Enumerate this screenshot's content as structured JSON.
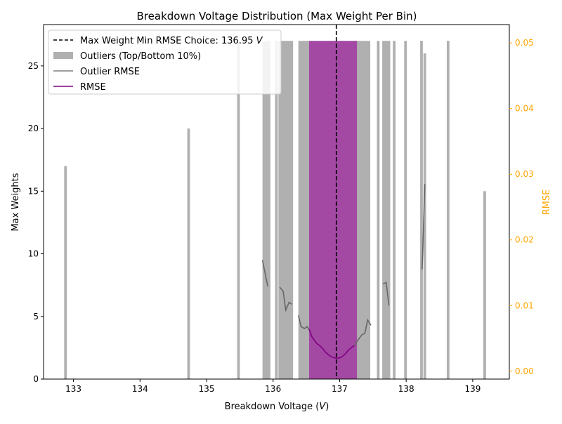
{
  "chart_data": {
    "type": "bar",
    "title": "Breakdown Voltage Distribution (Max Weight Per Bin)",
    "xlabel": "Breakdown Voltage (V)",
    "xlabel_parts": {
      "prefix": "Breakdown Voltage (",
      "unit": "V",
      "suffix": ")"
    },
    "ylabel": "Max Weights",
    "y2label": "RMSE",
    "xlim": [
      132.55,
      139.55
    ],
    "ylim": [
      0,
      28.3
    ],
    "y2lim": [
      -0.0012,
      0.0528
    ],
    "xticks": [
      "133",
      "134",
      "135",
      "136",
      "137",
      "138",
      "139"
    ],
    "yticks": [
      "0",
      "5",
      "10",
      "15",
      "20",
      "25"
    ],
    "y2ticks": [
      "0.00",
      "0.01",
      "0.02",
      "0.03",
      "0.04",
      "0.05"
    ],
    "grid": false,
    "legend_position": "top-left",
    "legend": [
      {
        "label": "Max Weight Min RMSE Choice: 136.95 ",
        "unit": "V",
        "kind": "vline"
      },
      {
        "label": "Outliers (Top/Bottom 10%)",
        "kind": "patch"
      },
      {
        "label": "Outlier RMSE",
        "kind": "line"
      },
      {
        "label": "RMSE",
        "kind": "line"
      }
    ],
    "colors": {
      "outlier_bar": "#b0b0b0",
      "main_bar": "#a349a4",
      "outlier_rmse": "#7f7f7f",
      "rmse": "#800080",
      "y2_axis": "#ffa500",
      "vline": "#000000"
    },
    "vline_x": 136.95,
    "outlier_bars": [
      {
        "x": 132.88,
        "w": 0.04,
        "y": 17
      },
      {
        "x": 134.73,
        "w": 0.04,
        "y": 20
      },
      {
        "x": 135.48,
        "w": 0.04,
        "y": 27
      },
      {
        "x": 135.9,
        "w": 0.12,
        "y": 27
      },
      {
        "x": 136.05,
        "w": 0.04,
        "y": 27
      },
      {
        "x": 136.19,
        "w": 0.22,
        "y": 27
      },
      {
        "x": 136.46,
        "w": 0.16,
        "y": 27
      },
      {
        "x": 137.35,
        "w": 0.22,
        "y": 27
      },
      {
        "x": 137.58,
        "w": 0.04,
        "y": 27
      },
      {
        "x": 137.7,
        "w": 0.12,
        "y": 27
      },
      {
        "x": 137.82,
        "w": 0.04,
        "y": 27
      },
      {
        "x": 137.99,
        "w": 0.04,
        "y": 27
      },
      {
        "x": 138.23,
        "w": 0.04,
        "y": 27
      },
      {
        "x": 138.28,
        "w": 0.04,
        "y": 26
      },
      {
        "x": 138.63,
        "w": 0.04,
        "y": 27
      },
      {
        "x": 139.18,
        "w": 0.04,
        "y": 15
      }
    ],
    "main_bars": [
      {
        "x": 136.9,
        "w": 0.72,
        "y": 27
      }
    ],
    "outlier_rmse": [
      [
        [
          135.84,
          0.0169
        ],
        [
          135.92,
          0.0129
        ]
      ],
      [
        [
          136.1,
          0.0128
        ],
        [
          136.15,
          0.0122
        ],
        [
          136.19,
          0.0093
        ],
        [
          136.24,
          0.0105
        ],
        [
          136.28,
          0.0102
        ]
      ],
      [
        [
          136.38,
          0.0085
        ],
        [
          136.42,
          0.0068
        ],
        [
          136.47,
          0.0065
        ],
        [
          136.51,
          0.0068
        ],
        [
          136.54,
          0.0064
        ]
      ],
      [
        [
          137.22,
          0.0039
        ],
        [
          137.28,
          0.0048
        ],
        [
          137.33,
          0.0055
        ],
        [
          137.38,
          0.0058
        ],
        [
          137.42,
          0.0078
        ],
        [
          137.47,
          0.007
        ]
      ],
      [
        [
          137.65,
          0.0133
        ],
        [
          137.7,
          0.0135
        ],
        [
          137.74,
          0.01
        ]
      ],
      [
        [
          138.24,
          0.0155
        ],
        [
          138.28,
          0.0285
        ]
      ]
    ],
    "rmse": [
      [
        136.54,
        0.0064
      ],
      [
        136.58,
        0.0053
      ],
      [
        136.62,
        0.0047
      ],
      [
        136.66,
        0.0042
      ],
      [
        136.7,
        0.0039
      ],
      [
        136.74,
        0.0035
      ],
      [
        136.78,
        0.003
      ],
      [
        136.82,
        0.0026
      ],
      [
        136.86,
        0.0023
      ],
      [
        136.9,
        0.0021
      ],
      [
        136.94,
        0.002
      ],
      [
        136.98,
        0.002
      ],
      [
        137.02,
        0.0021
      ],
      [
        137.06,
        0.0024
      ],
      [
        137.1,
        0.0028
      ],
      [
        137.14,
        0.0033
      ],
      [
        137.18,
        0.0036
      ],
      [
        137.22,
        0.0039
      ]
    ]
  }
}
